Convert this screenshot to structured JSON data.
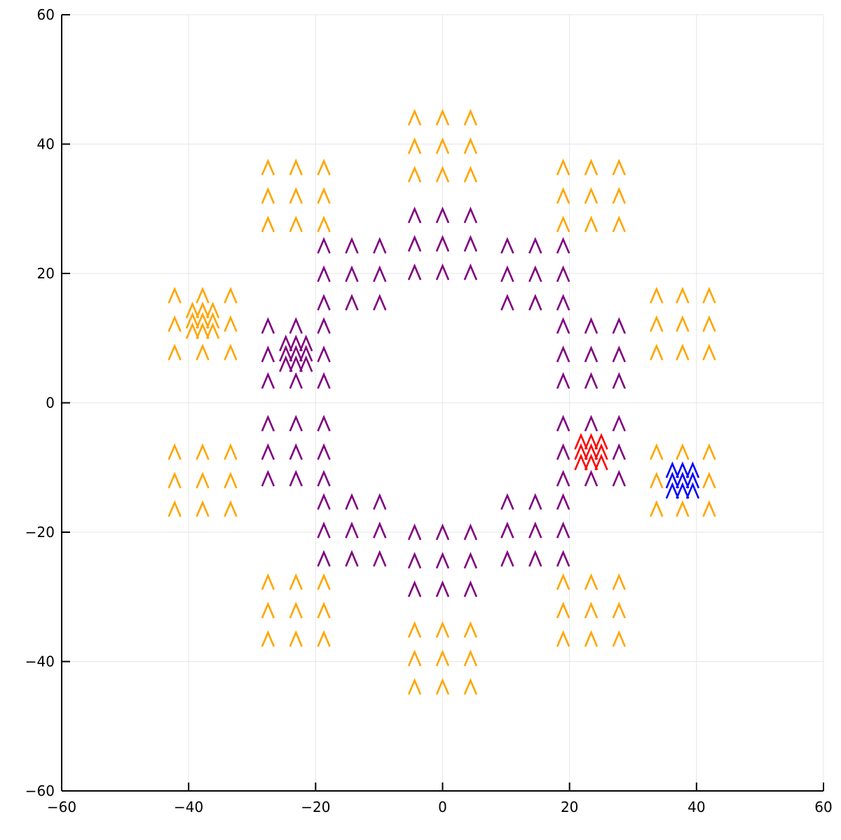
{
  "chart_data": {
    "type": "scatter",
    "title": "",
    "xlabel": "",
    "ylabel": "",
    "xlim": [
      -60,
      60
    ],
    "ylim": [
      -60,
      60
    ],
    "xticks": [
      -60,
      -40,
      -20,
      0,
      20,
      40,
      60
    ],
    "yticks": [
      -60,
      -40,
      -20,
      0,
      20,
      40,
      60
    ],
    "xtick_labels": [
      "−60",
      "−40",
      "−20",
      "0",
      "20",
      "40",
      "60"
    ],
    "ytick_labels": [
      "−60",
      "−40",
      "−20",
      "0",
      "20",
      "40",
      "60"
    ],
    "grid": true,
    "legend": "none",
    "marker": "chevron-up",
    "series": [
      {
        "color": "#ffa500",
        "role": "outer-ring",
        "points": [
          [
            -4.4,
            44
          ],
          [
            0,
            44
          ],
          [
            4.4,
            44
          ],
          [
            -4.4,
            39.6
          ],
          [
            0,
            39.6
          ],
          [
            4.4,
            39.6
          ],
          [
            -4.4,
            35.2
          ],
          [
            0,
            35.2
          ],
          [
            4.4,
            35.2
          ],
          [
            -4.4,
            -35.2
          ],
          [
            0,
            -35.2
          ],
          [
            4.4,
            -35.2
          ],
          [
            -4.4,
            -39.6
          ],
          [
            0,
            -39.6
          ],
          [
            4.4,
            -39.6
          ],
          [
            -4.4,
            -44
          ],
          [
            0,
            -44
          ],
          [
            4.4,
            -44
          ],
          [
            -27.5,
            36.3
          ],
          [
            -23.1,
            36.3
          ],
          [
            -18.7,
            36.3
          ],
          [
            -27.5,
            31.9
          ],
          [
            -23.1,
            31.9
          ],
          [
            -18.7,
            31.9
          ],
          [
            -27.5,
            27.5
          ],
          [
            -23.1,
            27.5
          ],
          [
            -18.7,
            27.5
          ],
          [
            19,
            36.3
          ],
          [
            23.4,
            36.3
          ],
          [
            27.8,
            36.3
          ],
          [
            19,
            31.9
          ],
          [
            23.4,
            31.9
          ],
          [
            27.8,
            31.9
          ],
          [
            19,
            27.5
          ],
          [
            23.4,
            27.5
          ],
          [
            27.8,
            27.5
          ],
          [
            -27.5,
            -27.8
          ],
          [
            -23.1,
            -27.8
          ],
          [
            -18.7,
            -27.8
          ],
          [
            -27.5,
            -32.2
          ],
          [
            -23.1,
            -32.2
          ],
          [
            -18.7,
            -32.2
          ],
          [
            -27.5,
            -36.6
          ],
          [
            -23.1,
            -36.6
          ],
          [
            -18.7,
            -36.6
          ],
          [
            19,
            -27.8
          ],
          [
            23.4,
            -27.8
          ],
          [
            27.8,
            -27.8
          ],
          [
            19,
            -32.2
          ],
          [
            23.4,
            -32.2
          ],
          [
            27.8,
            -32.2
          ],
          [
            19,
            -36.6
          ],
          [
            23.4,
            -36.6
          ],
          [
            27.8,
            -36.6
          ],
          [
            -42.2,
            16.5
          ],
          [
            -37.8,
            16.5
          ],
          [
            -33.4,
            16.5
          ],
          [
            -42.2,
            12.1
          ],
          [
            -33.4,
            12.1
          ],
          [
            -42.2,
            7.7
          ],
          [
            -37.8,
            7.7
          ],
          [
            -33.4,
            7.7
          ],
          [
            33.7,
            16.5
          ],
          [
            37.8,
            16.5
          ],
          [
            42,
            16.5
          ],
          [
            33.7,
            12.1
          ],
          [
            37.8,
            12.1
          ],
          [
            42,
            12.1
          ],
          [
            33.7,
            7.7
          ],
          [
            37.8,
            7.7
          ],
          [
            42,
            7.7
          ],
          [
            -42.2,
            -7.7
          ],
          [
            -37.8,
            -7.7
          ],
          [
            -33.4,
            -7.7
          ],
          [
            -42.2,
            -12.1
          ],
          [
            -37.8,
            -12.1
          ],
          [
            -33.4,
            -12.1
          ],
          [
            -42.2,
            -16.5
          ],
          [
            -37.8,
            -16.5
          ],
          [
            -33.4,
            -16.5
          ],
          [
            33.7,
            -7.7
          ],
          [
            37.8,
            -7.7
          ],
          [
            42,
            -7.7
          ],
          [
            33.7,
            -12.1
          ],
          [
            42,
            -12.1
          ],
          [
            33.7,
            -16.5
          ],
          [
            37.8,
            -16.5
          ],
          [
            42,
            -16.5
          ]
        ]
      },
      {
        "color": "#ffa500",
        "role": "cluster",
        "points": [
          [
            -39.4,
            14.2
          ],
          [
            -37.8,
            14.2
          ],
          [
            -36.2,
            14.2
          ],
          [
            -39.4,
            12.6
          ],
          [
            -37.8,
            12.6
          ],
          [
            -36.2,
            12.6
          ],
          [
            -39.4,
            11
          ],
          [
            -37.8,
            11
          ],
          [
            -36.2,
            11
          ]
        ]
      },
      {
        "color": "#800080",
        "role": "inner-ring",
        "points": [
          [
            -4.4,
            28.9
          ],
          [
            0,
            28.9
          ],
          [
            4.4,
            28.9
          ],
          [
            -4.4,
            24.5
          ],
          [
            0,
            24.5
          ],
          [
            4.4,
            24.5
          ],
          [
            -4.4,
            20.1
          ],
          [
            0,
            20.1
          ],
          [
            4.4,
            20.1
          ],
          [
            -4.4,
            -20.1
          ],
          [
            0,
            -20.1
          ],
          [
            4.4,
            -20.1
          ],
          [
            -4.4,
            -24.5
          ],
          [
            0,
            -24.5
          ],
          [
            4.4,
            -24.5
          ],
          [
            -4.4,
            -28.9
          ],
          [
            0,
            -28.9
          ],
          [
            4.4,
            -28.9
          ],
          [
            -18.7,
            24.2
          ],
          [
            -14.3,
            24.2
          ],
          [
            -9.9,
            24.2
          ],
          [
            -18.7,
            19.8
          ],
          [
            -14.3,
            19.8
          ],
          [
            -9.9,
            19.8
          ],
          [
            -18.7,
            15.4
          ],
          [
            -14.3,
            15.4
          ],
          [
            -9.9,
            15.4
          ],
          [
            10.2,
            24.2
          ],
          [
            14.6,
            24.2
          ],
          [
            19,
            24.2
          ],
          [
            10.2,
            19.8
          ],
          [
            14.6,
            19.8
          ],
          [
            19,
            19.8
          ],
          [
            10.2,
            15.4
          ],
          [
            14.6,
            15.4
          ],
          [
            19,
            15.4
          ],
          [
            -18.7,
            -15.4
          ],
          [
            -14.3,
            -15.4
          ],
          [
            -9.9,
            -15.4
          ],
          [
            -18.7,
            -19.8
          ],
          [
            -14.3,
            -19.8
          ],
          [
            -9.9,
            -19.8
          ],
          [
            -18.7,
            -24.2
          ],
          [
            -14.3,
            -24.2
          ],
          [
            -9.9,
            -24.2
          ],
          [
            10.2,
            -15.4
          ],
          [
            14.6,
            -15.4
          ],
          [
            19,
            -15.4
          ],
          [
            10.2,
            -19.8
          ],
          [
            14.6,
            -19.8
          ],
          [
            19,
            -19.8
          ],
          [
            10.2,
            -24.2
          ],
          [
            14.6,
            -24.2
          ],
          [
            19,
            -24.2
          ],
          [
            -27.5,
            11.8
          ],
          [
            -23.1,
            11.8
          ],
          [
            -18.7,
            11.8
          ],
          [
            -27.5,
            7.4
          ],
          [
            -18.7,
            7.4
          ],
          [
            -27.5,
            3.3
          ],
          [
            -23.1,
            3.3
          ],
          [
            -18.7,
            3.3
          ],
          [
            19,
            11.8
          ],
          [
            23.4,
            11.8
          ],
          [
            27.8,
            11.8
          ],
          [
            19,
            7.4
          ],
          [
            23.4,
            7.4
          ],
          [
            27.8,
            7.4
          ],
          [
            19,
            3.3
          ],
          [
            23.4,
            3.3
          ],
          [
            27.8,
            3.3
          ],
          [
            -27.5,
            -3.3
          ],
          [
            -23.1,
            -3.3
          ],
          [
            -18.7,
            -3.3
          ],
          [
            -27.5,
            -7.7
          ],
          [
            -23.1,
            -7.7
          ],
          [
            -18.7,
            -7.7
          ],
          [
            -27.5,
            -11.8
          ],
          [
            -23.1,
            -11.8
          ],
          [
            -18.7,
            -11.8
          ],
          [
            19,
            -3.3
          ],
          [
            23.4,
            -3.3
          ],
          [
            27.8,
            -3.3
          ],
          [
            19,
            -7.7
          ],
          [
            27.8,
            -7.7
          ],
          [
            19,
            -11.8
          ],
          [
            23.4,
            -11.8
          ],
          [
            27.8,
            -11.8
          ]
        ]
      },
      {
        "color": "#800080",
        "role": "cluster",
        "points": [
          [
            -24.7,
            9.1
          ],
          [
            -23.1,
            9.1
          ],
          [
            -21.5,
            9.1
          ],
          [
            -24.7,
            7.5
          ],
          [
            -23.1,
            7.5
          ],
          [
            -21.5,
            7.5
          ],
          [
            -24.7,
            5.9
          ],
          [
            -23.1,
            5.9
          ],
          [
            -21.5,
            5.9
          ]
        ]
      },
      {
        "color": "#ff0000",
        "role": "cluster",
        "points": [
          [
            21.8,
            -6.1
          ],
          [
            23.4,
            -6.1
          ],
          [
            25,
            -6.1
          ],
          [
            21.8,
            -7.7
          ],
          [
            23.4,
            -7.7
          ],
          [
            25,
            -7.7
          ],
          [
            21.8,
            -9.3
          ],
          [
            23.4,
            -9.3
          ],
          [
            25,
            -9.3
          ]
        ]
      },
      {
        "color": "#0000ff",
        "role": "cluster",
        "points": [
          [
            36.2,
            -10.5
          ],
          [
            37.8,
            -10.5
          ],
          [
            39.4,
            -10.5
          ],
          [
            36.2,
            -12.1
          ],
          [
            37.8,
            -12.1
          ],
          [
            39.4,
            -12.1
          ],
          [
            36.2,
            -13.7
          ],
          [
            37.8,
            -13.7
          ],
          [
            39.4,
            -13.7
          ]
        ]
      }
    ]
  }
}
